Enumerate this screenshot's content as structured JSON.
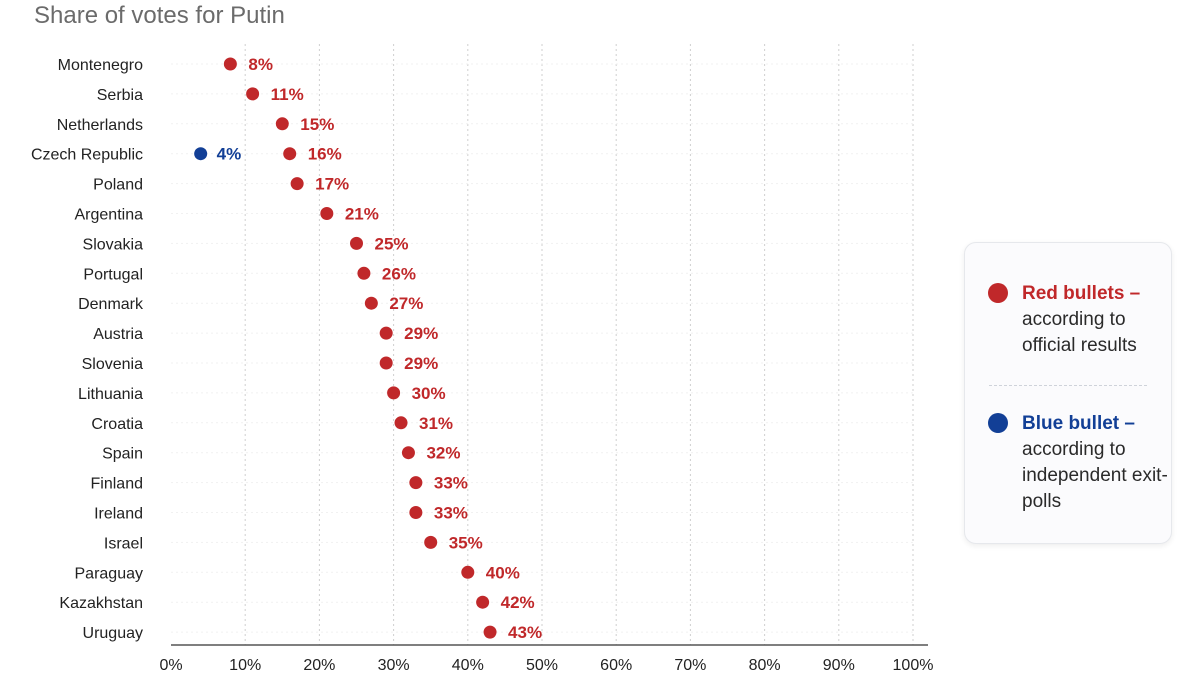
{
  "chart_data": {
    "type": "scatter",
    "title": "Share of votes for Putin",
    "xlim": [
      0,
      100
    ],
    "x_ticks": [
      "0%",
      "10%",
      "20%",
      "30%",
      "40%",
      "50%",
      "60%",
      "70%",
      "80%",
      "90%",
      "100%"
    ],
    "grid": "vertical dotted",
    "categories": [
      "Montenegro",
      "Serbia",
      "Netherlands",
      "Czech Republic",
      "Poland",
      "Argentina",
      "Slovakia",
      "Portugal",
      "Denmark",
      "Austria",
      "Slovenia",
      "Lithuania",
      "Croatia",
      "Spain",
      "Finland",
      "Ireland",
      "Israel",
      "Paraguay",
      "Kazakhstan",
      "Uruguay"
    ],
    "series": [
      {
        "name": "Red bullets",
        "color": "#c0282a",
        "values": [
          8,
          11,
          15,
          16,
          17,
          21,
          25,
          26,
          27,
          29,
          29,
          30,
          31,
          32,
          33,
          33,
          35,
          40,
          42,
          43
        ],
        "labels": [
          "8%",
          "11%",
          "15%",
          "16%",
          "17%",
          "21%",
          "25%",
          "26%",
          "27%",
          "29%",
          "29%",
          "30%",
          "31%",
          "32%",
          "33%",
          "33%",
          "35%",
          "40%",
          "42%",
          "43%"
        ]
      },
      {
        "name": "Blue bullet",
        "color": "#123f96",
        "points": [
          {
            "category": "Czech Republic",
            "value": 4,
            "label": "4%"
          }
        ]
      }
    ],
    "legend_position": "right"
  },
  "legend": {
    "red_head": "Red bullets –",
    "red_desc": "according to official results",
    "blue_head": "Blue bullet –",
    "blue_desc": "according to independent exit-polls"
  }
}
